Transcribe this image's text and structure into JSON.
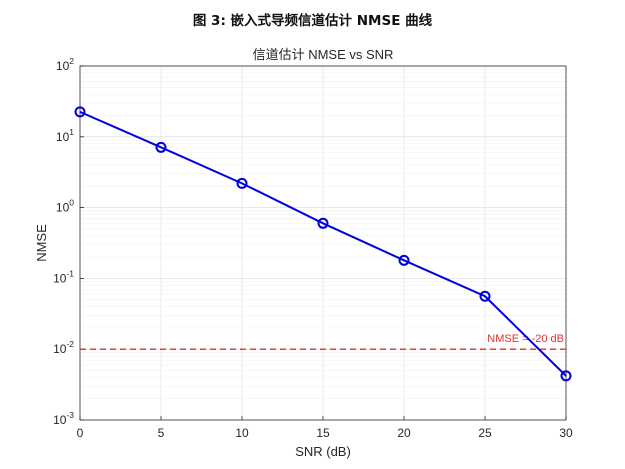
{
  "figure_title": "图 3: 嵌入式导频信道估计 NMSE 曲线",
  "chart_data": {
    "type": "line",
    "title": "信道估计 NMSE vs SNR",
    "xlabel": "SNR (dB)",
    "ylabel": "NMSE",
    "yscale": "log",
    "xlim": [
      0,
      30
    ],
    "ylim": [
      0.001,
      100
    ],
    "grid": true,
    "x_ticks": [
      "0",
      "5",
      "10",
      "15",
      "20",
      "25",
      "30"
    ],
    "y_ticks": [
      {
        "base": "10",
        "exp": "-3"
      },
      {
        "base": "10",
        "exp": "-2"
      },
      {
        "base": "10",
        "exp": "-1"
      },
      {
        "base": "10",
        "exp": "0"
      },
      {
        "base": "10",
        "exp": "1"
      },
      {
        "base": "10",
        "exp": "2"
      }
    ],
    "series": [
      {
        "x": [
          0,
          5,
          10,
          15,
          20,
          25,
          30
        ],
        "values": [
          22.5,
          7.1,
          2.2,
          0.6,
          0.18,
          0.056,
          0.0042
        ],
        "color": "#0000dd",
        "marker": "circle"
      }
    ],
    "reference_line": {
      "y": 0.01,
      "label": "NMSE = -20 dB",
      "color": "#e53030",
      "style": "dashed"
    }
  }
}
